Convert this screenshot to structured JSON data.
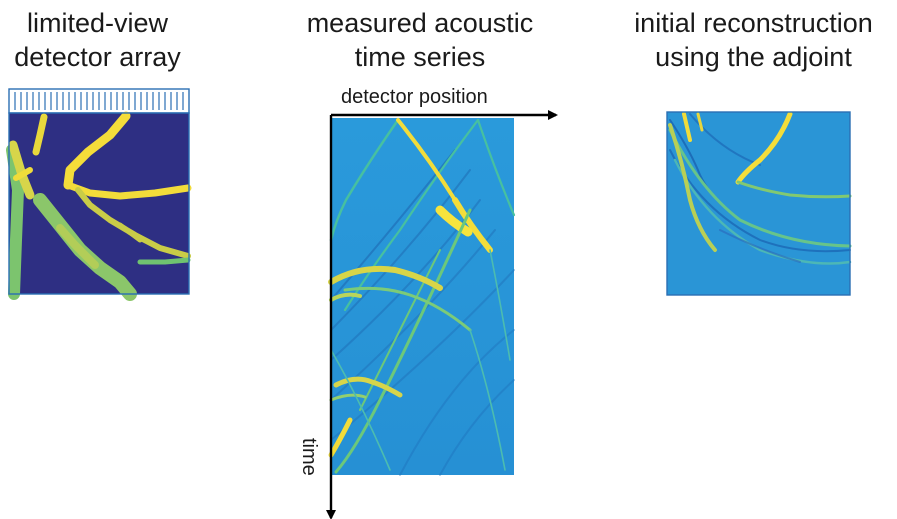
{
  "panels": {
    "detector": {
      "title_line1": "limited-view",
      "title_line2": "detector array"
    },
    "timeseries": {
      "title_line1": "measured acoustic",
      "title_line2": "time series",
      "x_axis_label": "detector position",
      "y_axis_label": "time"
    },
    "reconstruction": {
      "title_line1": "initial reconstruction",
      "title_line2": "using the adjoint"
    }
  },
  "colors": {
    "background_dark": "#2e2f83",
    "vessel_yellow": "#f4dd3a",
    "vessel_green": "#7cc46e",
    "field_blue": "#2a93d6",
    "frame_blue": "#2a6fb4",
    "arrow": "#000000"
  }
}
